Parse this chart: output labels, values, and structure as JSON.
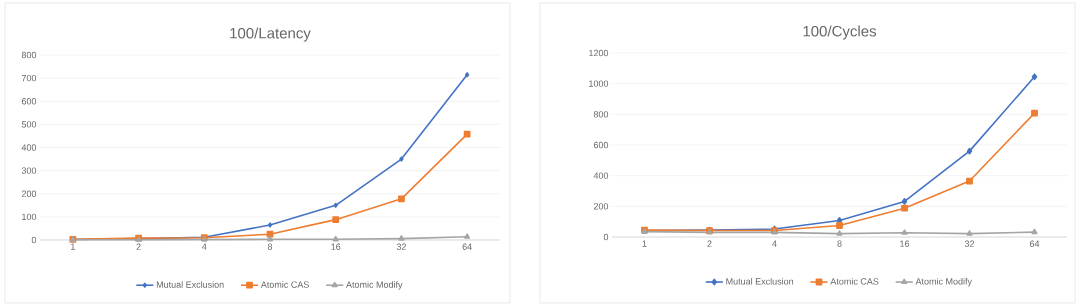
{
  "chart_data": [
    {
      "type": "line",
      "title": "100/Latency",
      "categories": [
        "1",
        "2",
        "4",
        "8",
        "16",
        "32",
        "64"
      ],
      "series": [
        {
          "name": "Mutual Exclusion",
          "color": "#4472c4",
          "marker": "diamond",
          "values": [
            2,
            6,
            12,
            65,
            150,
            350,
            715
          ]
        },
        {
          "name": "Atomic CAS",
          "color": "#ed7d31",
          "marker": "square",
          "values": [
            3,
            8,
            10,
            25,
            88,
            178,
            458
          ]
        },
        {
          "name": "Atomic Modify",
          "color": "#a5a5a5",
          "marker": "triangle",
          "values": [
            1,
            1,
            2,
            3,
            3,
            6,
            14
          ]
        }
      ],
      "ylim": [
        0,
        800
      ],
      "yticks": [
        0,
        100,
        200,
        300,
        400,
        500,
        600,
        700,
        800
      ],
      "grid": "y",
      "legend": "bottom"
    },
    {
      "type": "line",
      "title": "100/Cycles",
      "categories": [
        "1",
        "2",
        "4",
        "8",
        "16",
        "32",
        "64"
      ],
      "series": [
        {
          "name": "Mutual Exclusion",
          "color": "#4472c4",
          "marker": "diamond",
          "values": [
            42,
            45,
            52,
            108,
            232,
            560,
            1045
          ]
        },
        {
          "name": "Atomic CAS",
          "color": "#ed7d31",
          "marker": "square",
          "values": [
            45,
            42,
            42,
            75,
            188,
            365,
            808
          ]
        },
        {
          "name": "Atomic Modify",
          "color": "#a5a5a5",
          "marker": "triangle",
          "values": [
            35,
            30,
            30,
            22,
            28,
            22,
            32
          ]
        }
      ],
      "ylim": [
        0,
        1200
      ],
      "yticks": [
        0,
        200,
        400,
        600,
        800,
        1000,
        1200
      ],
      "grid": "y",
      "legend": "bottom"
    }
  ]
}
